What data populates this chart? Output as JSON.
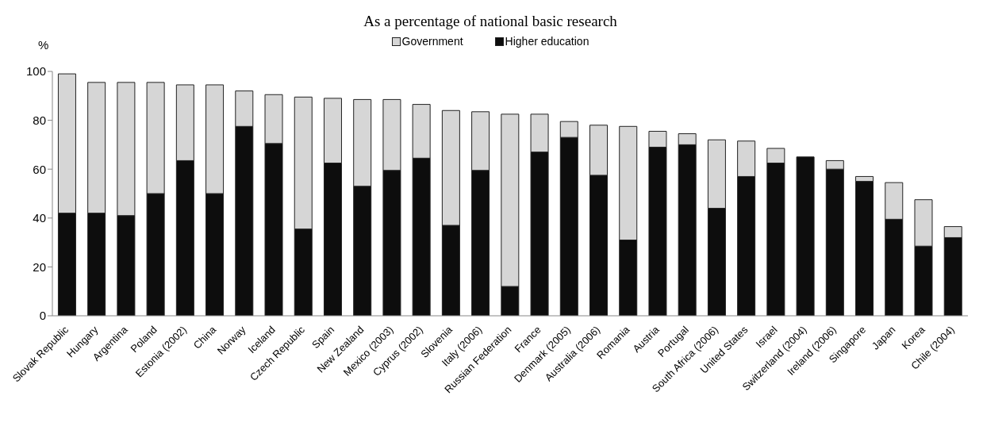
{
  "chart_data": {
    "type": "bar",
    "title": "As a percentage of national basic research",
    "ylabel": "%",
    "categories": [
      "Slovak Republic",
      "Hungary",
      "Argentina",
      "Poland",
      "Estonia (2002)",
      "China",
      "Norway",
      "Iceland",
      "Czech Republic",
      "Spain",
      "New Zealand",
      "Mexico (2003)",
      "Cyprus (2002)",
      "Slovenia",
      "Italy (2006)",
      "Russian Federation",
      "France",
      "Denmark (2005)",
      "Australia (2006)",
      "Romania",
      "Austria",
      "Portugal",
      "South Africa (2006)",
      "United States",
      "Israel",
      "Switzerland (2004)",
      "Ireland (2006)",
      "Singapore",
      "Japan",
      "Korea",
      "Chile (2004)"
    ],
    "stacked": true,
    "series": [
      {
        "name": "Higher education",
        "color": "#0d0d0d",
        "values": [
          42,
          42,
          41,
          50,
          63.5,
          50,
          77.5,
          70.5,
          35.5,
          62.5,
          53,
          59.5,
          64.5,
          37,
          59.5,
          12,
          67,
          73,
          57.5,
          31,
          69,
          70,
          44,
          57,
          62.5,
          65,
          60,
          55,
          39.5,
          28.5,
          32
        ]
      },
      {
        "name": "Government",
        "color": "#d6d6d6",
        "values": [
          57,
          53.5,
          54.5,
          45.5,
          31,
          44.5,
          14.5,
          20,
          54,
          26.5,
          35.5,
          29,
          22,
          47,
          24,
          70.5,
          15.5,
          6.5,
          20.5,
          46.5,
          6.5,
          4.5,
          28,
          14.5,
          6,
          0,
          3.5,
          2,
          15,
          19,
          4.5
        ]
      }
    ],
    "ylim": [
      0,
      100
    ],
    "yticks": [
      0,
      20,
      40,
      60,
      80,
      100
    ],
    "legend": "top"
  }
}
